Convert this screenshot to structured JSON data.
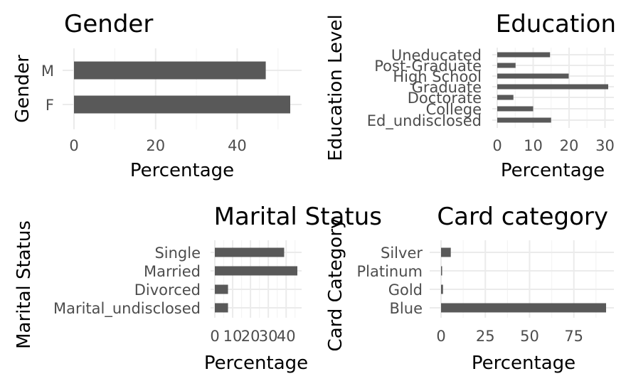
{
  "chart_data": [
    {
      "type": "bar",
      "orientation": "horizontal",
      "title": "Gender",
      "xlabel": "Percentage",
      "ylabel": "Gender",
      "categories": [
        "M",
        "F"
      ],
      "values": [
        47,
        53
      ],
      "xlim": [
        0,
        53
      ],
      "xticks": [
        "0",
        "20",
        "40"
      ],
      "bar_color": "#595959",
      "grid": true
    },
    {
      "type": "bar",
      "orientation": "horizontal",
      "title": "Education",
      "xlabel": "Percentage",
      "ylabel": "Education Level",
      "categories": [
        "Uneducated",
        "Post-Graduate",
        "High School",
        "Graduate",
        "Doctorate",
        "College",
        "Ed_undisclosed"
      ],
      "values": [
        14.7,
        5.1,
        19.9,
        30.9,
        4.5,
        10,
        15
      ],
      "xlim": [
        0,
        30.9
      ],
      "xticks": [
        "0",
        "10",
        "20",
        "30"
      ],
      "bar_color": "#595959",
      "grid": true
    },
    {
      "type": "bar",
      "orientation": "horizontal",
      "title": "Marital Status",
      "xlabel": "Percentage",
      "ylabel": "Marital Status",
      "categories": [
        "Single",
        "Married",
        "Divorced",
        "Marital_undisclosed"
      ],
      "values": [
        38.9,
        46.3,
        7.4,
        7.4
      ],
      "xlim": [
        0,
        46.3
      ],
      "xticks": [
        "0",
        "10",
        "20",
        "30",
        "40"
      ],
      "bar_color": "#595959",
      "grid": true
    },
    {
      "type": "bar",
      "orientation": "horizontal",
      "title": "Card category",
      "xlabel": "Percentage",
      "ylabel": "Card Category",
      "categories": [
        "Silver",
        "Platinum",
        "Gold",
        "Blue"
      ],
      "values": [
        5.5,
        0.2,
        1.1,
        93.2
      ],
      "xlim": [
        0,
        93.2
      ],
      "xticks": [
        "0",
        "25",
        "50",
        "75"
      ],
      "bar_color": "#595959",
      "grid": true
    }
  ]
}
